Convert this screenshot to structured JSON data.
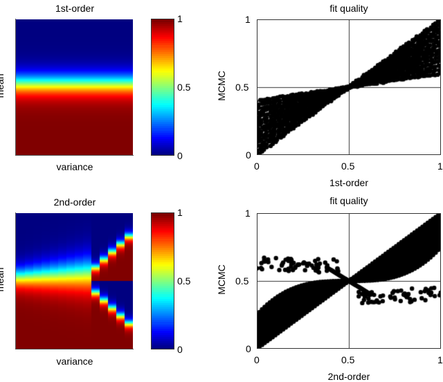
{
  "figure": {
    "panels": {
      "heat1": {
        "title": "1st-order",
        "xlabel": "variance",
        "ylabel": "mean"
      },
      "heat2": {
        "title": "2nd-order",
        "xlabel": "variance",
        "ylabel": "mean"
      },
      "scatter1": {
        "title": "fit quality",
        "xlabel": "1st-order",
        "ylabel": "MCMC"
      },
      "scatter2": {
        "title": "fit quality",
        "xlabel": "2nd-order",
        "ylabel": "MCMC"
      }
    },
    "colorbar": {
      "ticks": [
        "0",
        "0.5",
        "1"
      ],
      "colormap": "jet"
    },
    "scatter_ticks": {
      "x": [
        "0",
        "0.5",
        "1"
      ],
      "y": [
        "0",
        "0.5",
        "1"
      ]
    }
  },
  "chart_data": [
    {
      "type": "heatmap",
      "title": "1st-order",
      "xlabel": "variance",
      "ylabel": "mean",
      "colormap": "jet",
      "clim": [
        0,
        1
      ],
      "description": "Value constant across variance; sharp sigmoid transition along mean from 0 (top, blue) to 1 (bottom, dark red) at about 45% of the height.",
      "transition_center_frac": 0.47,
      "transition_width_frac": 0.05
    },
    {
      "type": "heatmap",
      "title": "2nd-order",
      "xlabel": "variance",
      "ylabel": "mean",
      "colormap": "jet",
      "clim": [
        0,
        1
      ],
      "columns": 14,
      "description": "Sigmoid transition along mean that broadens as variance increases; beyond ~65% of variance the map bifurcates: red wedge above the midline, blue wedge below, with outer branches diverging toward top/bottom.",
      "bifurcation_start_frac": 0.65
    },
    {
      "type": "scatter",
      "title": "fit quality",
      "xlabel": "1st-order",
      "ylabel": "MCMC",
      "xlim": [
        0,
        1
      ],
      "ylim": [
        0,
        1
      ],
      "xticks": [
        0,
        0.5,
        1
      ],
      "yticks": [
        0,
        0.5,
        1
      ],
      "grid": "lines at 0.5",
      "description": "Dense black markers forming a bow-tie band through (0.5, 0.5): at x=0, y ranges 0-0.4; at x=1, y ranges 0.6-1; pinched at the center."
    },
    {
      "type": "scatter",
      "title": "fit quality",
      "xlabel": "2nd-order",
      "ylabel": "MCMC",
      "xlim": [
        0,
        1
      ],
      "ylim": [
        0,
        1
      ],
      "xticks": [
        0,
        0.5,
        1
      ],
      "yticks": [
        0,
        0.5,
        1
      ],
      "grid": "lines at 0.5",
      "description": "Dense sigmoid-shaped band: lower-left fan (x=0, y 0-0.3) rising to upper-right (x=1, y 0.75-1); plus sparse outlier branches at y~0.6 for x<0.5 and y~0.4 for x>0.5 crossing at the center."
    }
  ]
}
